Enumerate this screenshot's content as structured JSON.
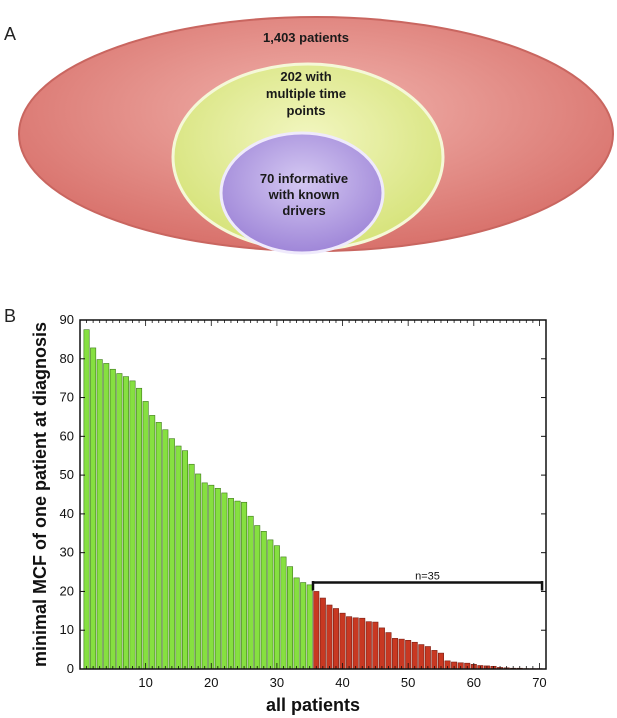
{
  "panels": {
    "a_label": "A",
    "b_label": "B"
  },
  "venn": {
    "outer": {
      "lines": [
        "1,403 patients"
      ],
      "color": "#e38a86"
    },
    "middle": {
      "lines": [
        "202 with",
        "multiple time",
        "points"
      ],
      "color": "#e6ef9a"
    },
    "inner": {
      "lines": [
        "70 informative",
        "with known",
        "drivers"
      ],
      "color": "#b09ae0"
    }
  },
  "chart_data": {
    "type": "bar",
    "xlabel": "all patients",
    "ylabel": "minimal MCF of one patient at diagnosis",
    "xlim": [
      0,
      71
    ],
    "ylim": [
      0,
      90
    ],
    "xticks": [
      10,
      20,
      30,
      40,
      50,
      60,
      70
    ],
    "yticks": [
      0,
      10,
      20,
      30,
      40,
      50,
      60,
      70,
      80,
      90
    ],
    "grid": false,
    "x": [
      1,
      2,
      3,
      4,
      5,
      6,
      7,
      8,
      9,
      10,
      11,
      12,
      13,
      14,
      15,
      16,
      17,
      18,
      19,
      20,
      21,
      22,
      23,
      24,
      25,
      26,
      27,
      28,
      29,
      30,
      31,
      32,
      33,
      34,
      35,
      36,
      37,
      38,
      39,
      40,
      41,
      42,
      43,
      44,
      45,
      46,
      47,
      48,
      49,
      50,
      51,
      52,
      53,
      54,
      55,
      56,
      57,
      58,
      59,
      60,
      61,
      62,
      63,
      64,
      65,
      66,
      67,
      68,
      69,
      70
    ],
    "values": [
      87.5,
      82.8,
      79.8,
      78.8,
      77.3,
      76.2,
      75.4,
      74.3,
      72.4,
      69.0,
      65.4,
      63.6,
      61.7,
      59.4,
      57.5,
      56.3,
      52.8,
      50.3,
      48.0,
      47.4,
      46.6,
      45.4,
      44.0,
      43.3,
      43.0,
      39.4,
      37.0,
      35.5,
      33.3,
      31.8,
      28.9,
      26.4,
      23.5,
      22.3,
      21.7,
      20.0,
      18.3,
      16.5,
      15.6,
      14.4,
      13.5,
      13.2,
      13.1,
      12.2,
      12.1,
      10.6,
      9.4,
      7.9,
      7.7,
      7.4,
      6.9,
      6.3,
      5.8,
      4.8,
      4.1,
      2.1,
      1.8,
      1.6,
      1.5,
      1.2,
      0.9,
      0.8,
      0.7,
      0.4,
      0.3,
      0.2,
      0.2,
      0.1,
      0.1,
      0.1
    ],
    "highlight_from_index": 35,
    "colors": {
      "green": "#86e040",
      "red": "#c83822"
    },
    "annotation": {
      "text": "n=35",
      "from_x": 36,
      "to_x": 71,
      "y": 22.3
    }
  }
}
